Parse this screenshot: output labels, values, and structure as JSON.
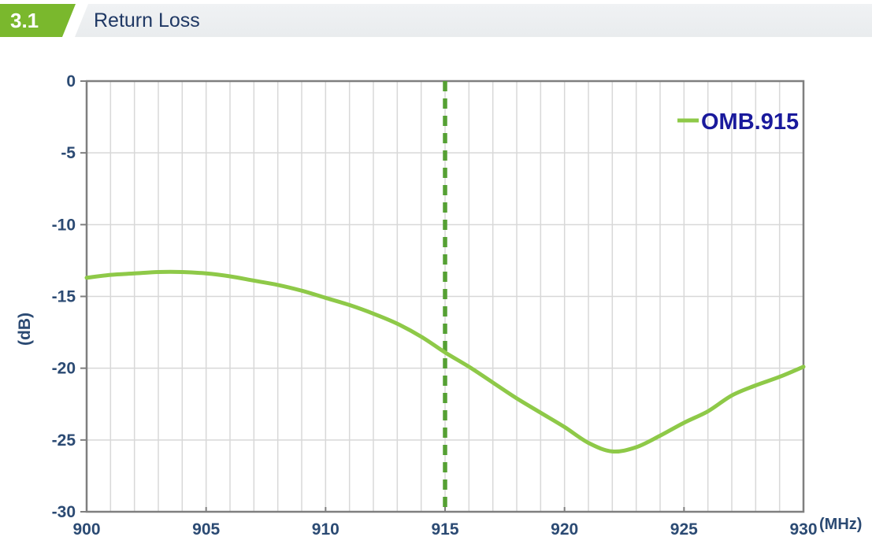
{
  "header": {
    "section_number": "3.1",
    "title": "Return Loss"
  },
  "colors": {
    "badge_green": "#7ab82d",
    "header_bar_bg": "#edeff1",
    "header_title_navy": "#1f3864",
    "curve_green": "#8ec948",
    "marker_green": "#55a033",
    "legend_navy": "#1a1a9c",
    "axis_label_navy": "#2b4a73",
    "grid_gray": "#d8d8d8",
    "frame_gray": "#7f7f7f",
    "background": "#ffffff"
  },
  "chart_data": {
    "type": "line",
    "title": "",
    "xlabel": "(MHz)",
    "ylabel": "(dB)",
    "xlim": [
      900,
      930
    ],
    "ylim": [
      -30,
      0
    ],
    "x_ticks": [
      900,
      905,
      910,
      915,
      920,
      925,
      930
    ],
    "x_tick_labels": [
      "900",
      "905",
      "910",
      "915",
      "920",
      "925",
      "930"
    ],
    "y_ticks": [
      0,
      -5,
      -10,
      -15,
      -20,
      -25,
      -30
    ],
    "y_tick_labels": [
      "0",
      "-5",
      "-10",
      "-15",
      "-20",
      "-25",
      "-30"
    ],
    "x_minor_grid_step": 1,
    "grid": "vertical every 1 MHz, horizontal every 5 dB",
    "legend_position": "top-right-inside",
    "marker_line": {
      "x": 915,
      "style": "dashed"
    },
    "series": [
      {
        "name": "OMB.915",
        "x": [
          900,
          901,
          902,
          903,
          904,
          905,
          906,
          907,
          908,
          909,
          910,
          911,
          912,
          913,
          914,
          915,
          916,
          917,
          918,
          919,
          920,
          921,
          922,
          923,
          924,
          925,
          926,
          927,
          928,
          929,
          930
        ],
        "values": [
          -13.7,
          -13.5,
          -13.4,
          -13.3,
          -13.3,
          -13.4,
          -13.6,
          -13.9,
          -14.2,
          -14.6,
          -15.1,
          -15.6,
          -16.2,
          -16.9,
          -17.8,
          -18.9,
          -19.9,
          -21.0,
          -22.1,
          -23.1,
          -24.1,
          -25.2,
          -25.8,
          -25.5,
          -24.7,
          -23.8,
          -23.0,
          -21.9,
          -21.2,
          -20.6,
          -19.9
        ]
      }
    ]
  }
}
